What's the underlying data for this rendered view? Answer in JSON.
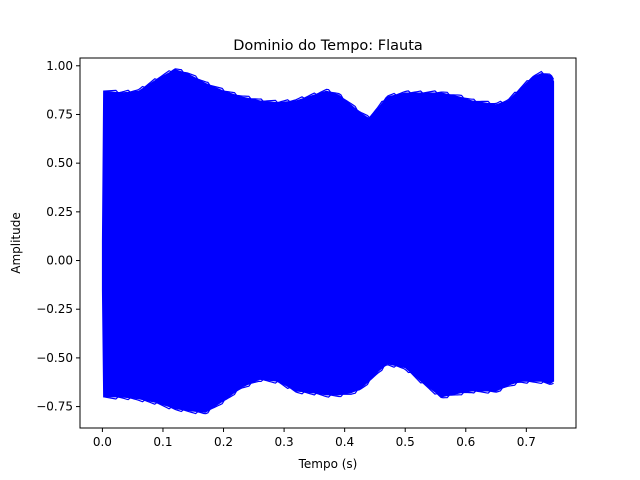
{
  "chart_data": {
    "type": "area",
    "title": "Dominio do Tempo: Flauta",
    "xlabel": "Tempo (s)",
    "ylabel": "Amplitude",
    "xlim": [
      -0.037,
      0.782
    ],
    "ylim": [
      -0.86,
      1.04
    ],
    "grid": false,
    "legend": "none",
    "x_ticks": [
      {
        "value": 0.0,
        "label": "0.0"
      },
      {
        "value": 0.1,
        "label": "0.1"
      },
      {
        "value": 0.2,
        "label": "0.2"
      },
      {
        "value": 0.3,
        "label": "0.3"
      },
      {
        "value": 0.4,
        "label": "0.4"
      },
      {
        "value": 0.5,
        "label": "0.5"
      },
      {
        "value": 0.6,
        "label": "0.6"
      },
      {
        "value": 0.7,
        "label": "0.7"
      }
    ],
    "y_ticks": [
      {
        "value": 1.0,
        "label": "1.00"
      },
      {
        "value": 0.75,
        "label": "0.75"
      },
      {
        "value": 0.5,
        "label": "0.50"
      },
      {
        "value": 0.25,
        "label": "0.25"
      },
      {
        "value": 0.0,
        "label": "0.00"
      },
      {
        "value": -0.25,
        "label": "−0.25"
      },
      {
        "value": -0.5,
        "label": "−0.50"
      },
      {
        "value": -0.75,
        "label": "−0.75"
      }
    ],
    "series": [
      {
        "color": "#0000ff",
        "description": "signal envelope (upper and lower amplitude over time)",
        "x": [
          0.0,
          0.002,
          0.03,
          0.06,
          0.09,
          0.12,
          0.14,
          0.17,
          0.2,
          0.23,
          0.26,
          0.29,
          0.32,
          0.35,
          0.37,
          0.39,
          0.41,
          0.425,
          0.44,
          0.455,
          0.47,
          0.5,
          0.53,
          0.56,
          0.59,
          0.61,
          0.63,
          0.65,
          0.67,
          0.69,
          0.71,
          0.725,
          0.74,
          0.745
        ],
        "upper": [
          0.1,
          0.87,
          0.86,
          0.87,
          0.93,
          0.98,
          0.96,
          0.91,
          0.87,
          0.84,
          0.82,
          0.81,
          0.82,
          0.85,
          0.87,
          0.85,
          0.8,
          0.76,
          0.73,
          0.78,
          0.84,
          0.86,
          0.86,
          0.86,
          0.84,
          0.82,
          0.81,
          0.8,
          0.82,
          0.88,
          0.94,
          0.96,
          0.95,
          0.92
        ],
        "lower": [
          -0.15,
          -0.7,
          -0.7,
          -0.71,
          -0.73,
          -0.76,
          -0.77,
          -0.78,
          -0.72,
          -0.65,
          -0.61,
          -0.62,
          -0.67,
          -0.68,
          -0.69,
          -0.69,
          -0.68,
          -0.66,
          -0.62,
          -0.57,
          -0.53,
          -0.55,
          -0.63,
          -0.7,
          -0.68,
          -0.67,
          -0.67,
          -0.67,
          -0.64,
          -0.62,
          -0.62,
          -0.62,
          -0.63,
          -0.62
        ]
      }
    ]
  }
}
